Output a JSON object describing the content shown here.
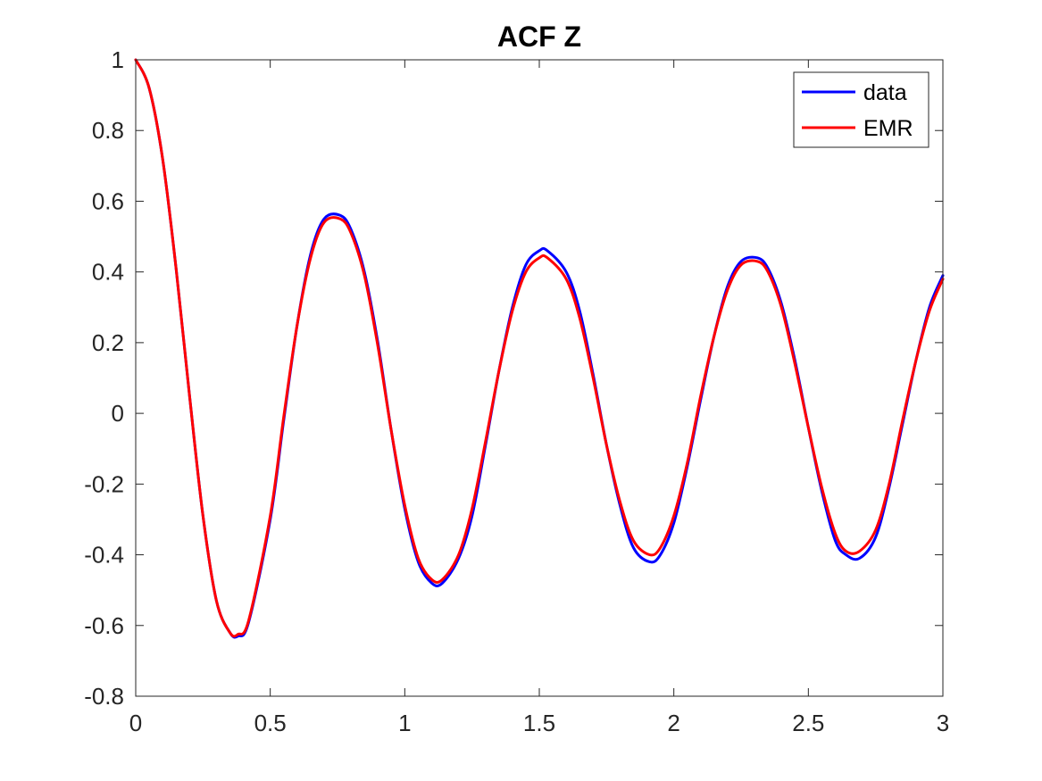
{
  "chart_data": {
    "type": "line",
    "title": "ACF Z",
    "xlabel": "",
    "ylabel": "",
    "xlim": [
      0,
      3
    ],
    "ylim": [
      -0.8,
      1
    ],
    "xticks": [
      0,
      0.5,
      1,
      1.5,
      2,
      2.5,
      3
    ],
    "yticks": [
      -0.8,
      -0.6,
      -0.4,
      -0.2,
      0,
      0.2,
      0.4,
      0.6,
      0.8,
      1
    ],
    "xtick_labels": [
      "0",
      "0.5",
      "1",
      "1.5",
      "2",
      "2.5",
      "3"
    ],
    "ytick_labels": [
      "-0.8",
      "-0.6",
      "-0.4",
      "-0.2",
      "0",
      "0.2",
      "0.4",
      "0.6",
      "0.8",
      "1"
    ],
    "grid": false,
    "legend_position": "top-right",
    "series": [
      {
        "name": "data",
        "color": "#0000ff",
        "x": [
          0,
          0.05,
          0.1,
          0.15,
          0.2,
          0.25,
          0.3,
          0.35,
          0.38,
          0.42,
          0.5,
          0.55,
          0.6,
          0.65,
          0.7,
          0.76,
          0.8,
          0.85,
          0.9,
          0.95,
          1.0,
          1.05,
          1.1,
          1.14,
          1.2,
          1.25,
          1.3,
          1.35,
          1.4,
          1.45,
          1.5,
          1.53,
          1.6,
          1.65,
          1.7,
          1.75,
          1.8,
          1.85,
          1.91,
          1.95,
          2.0,
          2.05,
          2.1,
          2.15,
          2.2,
          2.25,
          2.31,
          2.35,
          2.4,
          2.45,
          2.5,
          2.55,
          2.6,
          2.64,
          2.69,
          2.75,
          2.8,
          2.85,
          2.9,
          2.95,
          3.0
        ],
        "y": [
          1.0,
          0.92,
          0.72,
          0.41,
          0.05,
          -0.29,
          -0.53,
          -0.62,
          -0.63,
          -0.59,
          -0.3,
          -0.02,
          0.25,
          0.45,
          0.55,
          0.56,
          0.52,
          0.4,
          0.2,
          -0.05,
          -0.27,
          -0.42,
          -0.48,
          -0.48,
          -0.41,
          -0.29,
          -0.09,
          0.12,
          0.3,
          0.42,
          0.46,
          0.46,
          0.4,
          0.29,
          0.11,
          -0.09,
          -0.26,
          -0.38,
          -0.42,
          -0.4,
          -0.31,
          -0.15,
          0.04,
          0.22,
          0.36,
          0.43,
          0.44,
          0.41,
          0.31,
          0.15,
          -0.04,
          -0.22,
          -0.36,
          -0.4,
          -0.41,
          -0.35,
          -0.21,
          -0.03,
          0.15,
          0.3,
          0.39
        ]
      },
      {
        "name": "EMR",
        "color": "#ff0000",
        "x": [
          0,
          0.05,
          0.1,
          0.15,
          0.2,
          0.25,
          0.3,
          0.35,
          0.38,
          0.42,
          0.5,
          0.55,
          0.6,
          0.65,
          0.7,
          0.76,
          0.8,
          0.85,
          0.9,
          0.95,
          1.0,
          1.05,
          1.1,
          1.14,
          1.2,
          1.25,
          1.3,
          1.35,
          1.4,
          1.45,
          1.5,
          1.53,
          1.6,
          1.65,
          1.7,
          1.75,
          1.8,
          1.85,
          1.91,
          1.95,
          2.0,
          2.05,
          2.1,
          2.15,
          2.2,
          2.25,
          2.31,
          2.35,
          2.4,
          2.45,
          2.5,
          2.55,
          2.6,
          2.64,
          2.69,
          2.75,
          2.8,
          2.85,
          2.9,
          2.95,
          3.0
        ],
        "y": [
          1.0,
          0.92,
          0.72,
          0.41,
          0.05,
          -0.29,
          -0.53,
          -0.62,
          -0.625,
          -0.585,
          -0.29,
          -0.01,
          0.25,
          0.44,
          0.54,
          0.55,
          0.51,
          0.39,
          0.19,
          -0.05,
          -0.26,
          -0.41,
          -0.47,
          -0.47,
          -0.4,
          -0.27,
          -0.08,
          0.12,
          0.29,
          0.4,
          0.44,
          0.44,
          0.38,
          0.27,
          0.1,
          -0.09,
          -0.25,
          -0.36,
          -0.4,
          -0.38,
          -0.29,
          -0.14,
          0.05,
          0.22,
          0.35,
          0.42,
          0.43,
          0.4,
          0.3,
          0.14,
          -0.04,
          -0.21,
          -0.34,
          -0.39,
          -0.39,
          -0.33,
          -0.2,
          -0.02,
          0.15,
          0.29,
          0.38
        ]
      }
    ]
  }
}
